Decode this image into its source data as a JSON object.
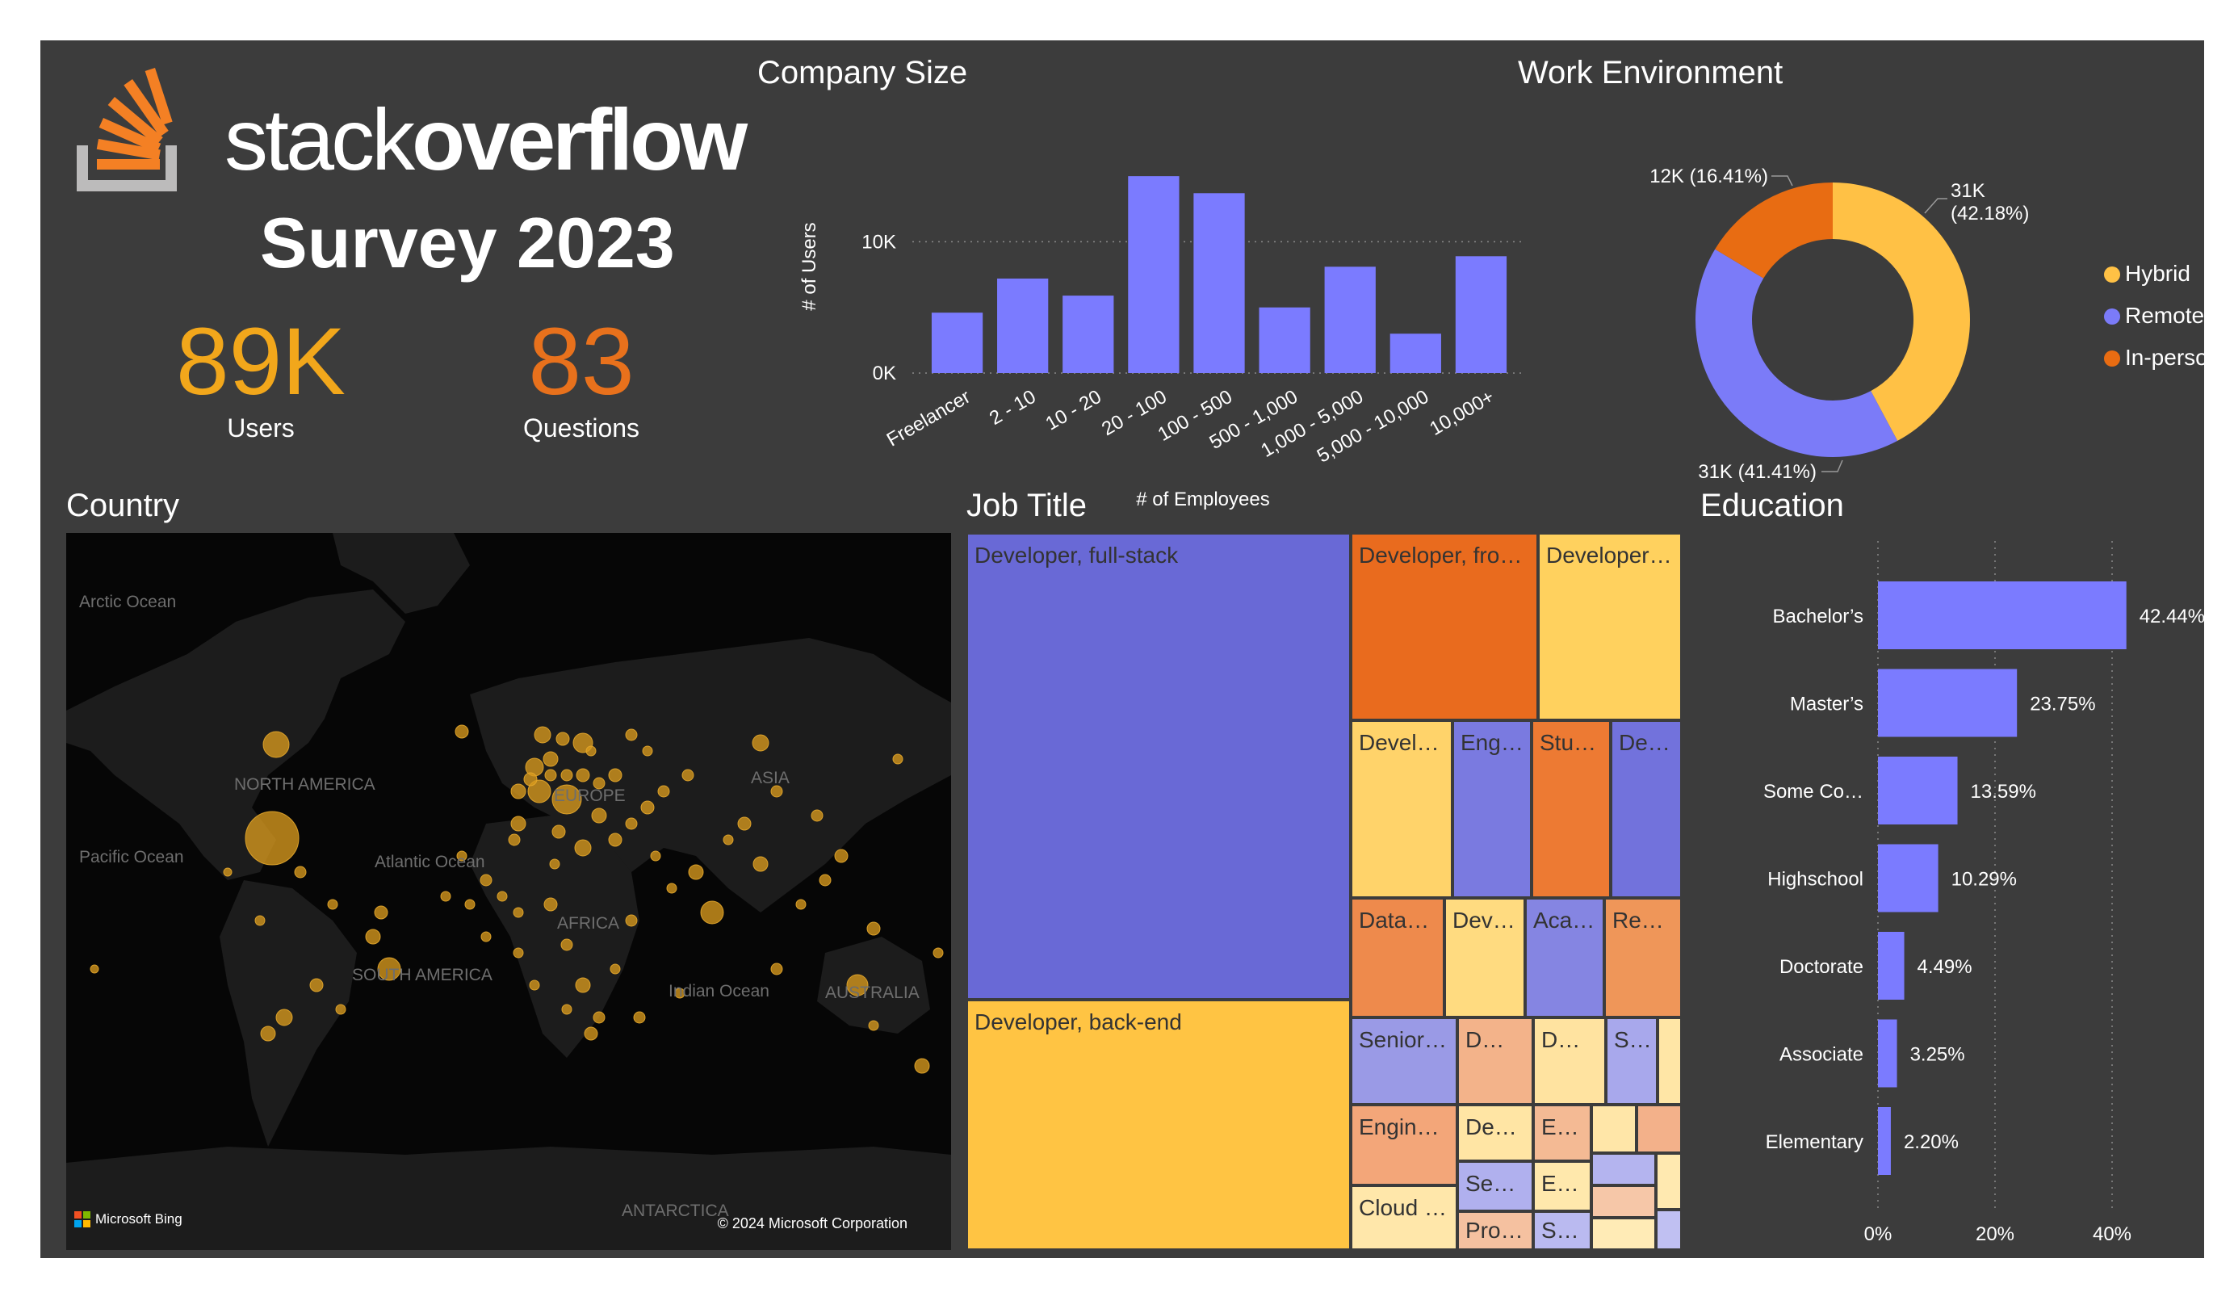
{
  "logo": {
    "word1": "stack",
    "word2": "overflow",
    "subtitle": "Survey 2023"
  },
  "kpis": [
    {
      "value": "89K",
      "label": "Users",
      "color": "#f2a71b"
    },
    {
      "value": "83",
      "label": "Questions",
      "color": "#e8711c"
    }
  ],
  "colors": {
    "background": "#3c3c3c",
    "bar": "#7b7bff",
    "hybrid": "#ffc145",
    "remote": "#7b7bf8",
    "in_person": "#e86c12",
    "text": "#ffffff"
  },
  "company_size": {
    "title": "Company Size",
    "chart_data": {
      "type": "bar",
      "categories": [
        "Freelancer",
        "2 - 10",
        "10 - 20",
        "20 - 100",
        "100 - 500",
        "500 - 1,000",
        "1,000 - 5,000",
        "5,000 - 10,000",
        "10,000+"
      ],
      "values": [
        4600,
        7200,
        5900,
        15000,
        13700,
        5000,
        8100,
        3000,
        8900
      ],
      "xlabel": "# of Employees",
      "ylabel": "# of Users",
      "yticks": [
        "0K",
        "10K"
      ],
      "ylim": [
        0,
        15500
      ]
    }
  },
  "work_environment": {
    "title": "Work Environment",
    "chart_data": {
      "type": "pie",
      "labels": [
        "Hybrid",
        "Remote",
        "In-person"
      ],
      "values": [
        42.18,
        41.41,
        16.41
      ],
      "data_labels": [
        [
          "31K",
          "(42.18%)"
        ],
        [
          "31K (41.41%)"
        ],
        [
          "12K (16.41%)"
        ]
      ],
      "legend": "right"
    }
  },
  "country": {
    "title": "Country",
    "labels": [
      "Arctic Ocean",
      "NORTH AMERICA",
      "EUROPE",
      "ASIA",
      "Pacific Ocean",
      "Atlantic Ocean",
      "AFRICA",
      "SOUTH AMERICA",
      "Indian Ocean",
      "AUSTRALIA",
      "ANTARCTICA"
    ],
    "bing": "Microsoft Bing",
    "copyright": "© 2024 Microsoft Corporation"
  },
  "job_title": {
    "title": "Job Title",
    "chart_data": {
      "type": "treemap",
      "labels": [
        "Developer, full-stack",
        "Developer, back-end",
        "Developer, fro…",
        "Developer…",
        "Devel…",
        "Eng…",
        "Stu…",
        "De…",
        "Data…",
        "Dev…",
        "Aca…",
        "Re…",
        "Senior…",
        "D…",
        "D…",
        "S…",
        "Engin…",
        "De…",
        "E…",
        "Se…",
        "E…",
        "Cloud …",
        "Pro…",
        "S…"
      ]
    }
  },
  "education": {
    "title": "Education",
    "chart_data": {
      "type": "bar",
      "orientation": "horizontal",
      "categories": [
        "Bachelor’s",
        "Master’s",
        "Some Co…",
        "Highschool",
        "Doctorate",
        "Associate",
        "Elementary"
      ],
      "values": [
        42.44,
        23.75,
        13.59,
        10.29,
        4.49,
        3.25,
        2.2
      ],
      "value_labels": [
        "42.44%",
        "23.75%",
        "13.59%",
        "10.29%",
        "4.49%",
        "3.25%",
        "2.20%"
      ],
      "xticks": [
        "0%",
        "20%",
        "40%"
      ],
      "xlim": [
        0,
        48
      ]
    }
  }
}
